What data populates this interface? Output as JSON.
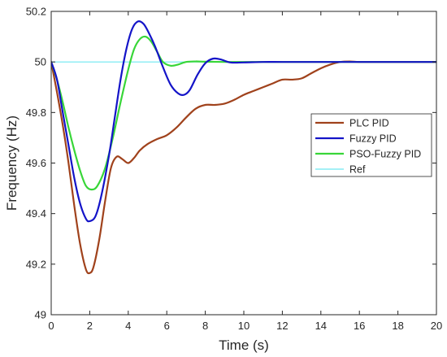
{
  "chart_data": {
    "type": "line",
    "title": "",
    "xlabel": "Time (s)",
    "ylabel": "Frequency (Hz)",
    "xlim": [
      0,
      20
    ],
    "ylim": [
      49,
      50.2
    ],
    "xticks": [
      0,
      2,
      4,
      6,
      8,
      10,
      12,
      14,
      16,
      18,
      20
    ],
    "yticks": [
      49,
      49.2,
      49.4,
      49.6,
      49.8,
      50,
      50.2
    ],
    "grid": false,
    "legend_position": "right",
    "series": [
      {
        "name": "PLC PID",
        "color": "#a0421c",
        "points": [
          [
            0,
            50
          ],
          [
            0.3,
            49.88
          ],
          [
            0.6,
            49.75
          ],
          [
            0.9,
            49.6
          ],
          [
            1.2,
            49.43
          ],
          [
            1.5,
            49.28
          ],
          [
            1.8,
            49.18
          ],
          [
            2.0,
            49.165
          ],
          [
            2.2,
            49.19
          ],
          [
            2.5,
            49.3
          ],
          [
            2.8,
            49.45
          ],
          [
            3.1,
            49.58
          ],
          [
            3.4,
            49.625
          ],
          [
            3.7,
            49.615
          ],
          [
            4.0,
            49.6
          ],
          [
            4.3,
            49.62
          ],
          [
            4.6,
            49.65
          ],
          [
            5.0,
            49.675
          ],
          [
            5.5,
            49.695
          ],
          [
            6.0,
            49.71
          ],
          [
            6.5,
            49.74
          ],
          [
            7.0,
            49.78
          ],
          [
            7.5,
            49.815
          ],
          [
            8.0,
            49.83
          ],
          [
            8.5,
            49.83
          ],
          [
            9.0,
            49.835
          ],
          [
            9.5,
            49.85
          ],
          [
            10.0,
            49.87
          ],
          [
            10.5,
            49.885
          ],
          [
            11.0,
            49.9
          ],
          [
            11.5,
            49.915
          ],
          [
            12.0,
            49.93
          ],
          [
            12.5,
            49.93
          ],
          [
            13.0,
            49.935
          ],
          [
            13.5,
            49.955
          ],
          [
            14.0,
            49.975
          ],
          [
            14.5,
            49.99
          ],
          [
            15.0,
            50
          ],
          [
            15.5,
            50.002
          ],
          [
            16.0,
            50
          ],
          [
            17.0,
            50
          ],
          [
            18.0,
            50
          ],
          [
            19.0,
            50
          ],
          [
            20.0,
            50
          ]
        ]
      },
      {
        "name": "Fuzzy PID",
        "color": "#1414c8",
        "points": [
          [
            0,
            50
          ],
          [
            0.3,
            49.93
          ],
          [
            0.6,
            49.8
          ],
          [
            0.9,
            49.67
          ],
          [
            1.2,
            49.54
          ],
          [
            1.5,
            49.44
          ],
          [
            1.8,
            49.38
          ],
          [
            2.0,
            49.37
          ],
          [
            2.3,
            49.39
          ],
          [
            2.6,
            49.47
          ],
          [
            3.0,
            49.63
          ],
          [
            3.3,
            49.78
          ],
          [
            3.6,
            49.93
          ],
          [
            3.9,
            50.05
          ],
          [
            4.2,
            50.13
          ],
          [
            4.5,
            50.16
          ],
          [
            4.8,
            50.15
          ],
          [
            5.1,
            50.11
          ],
          [
            5.4,
            50.06
          ],
          [
            5.8,
            49.98
          ],
          [
            6.2,
            49.91
          ],
          [
            6.6,
            49.875
          ],
          [
            6.9,
            49.87
          ],
          [
            7.2,
            49.89
          ],
          [
            7.6,
            49.95
          ],
          [
            8.0,
            49.995
          ],
          [
            8.4,
            50.013
          ],
          [
            8.8,
            50.01
          ],
          [
            9.3,
            49.998
          ],
          [
            10.0,
            49.998
          ],
          [
            11.0,
            50
          ],
          [
            12.0,
            50
          ],
          [
            14.0,
            50
          ],
          [
            16.0,
            50
          ],
          [
            18.0,
            50
          ],
          [
            20.0,
            50
          ]
        ]
      },
      {
        "name": "PSO-Fuzzy PID",
        "color": "#38d638",
        "points": [
          [
            0,
            50
          ],
          [
            0.3,
            49.93
          ],
          [
            0.6,
            49.84
          ],
          [
            0.9,
            49.74
          ],
          [
            1.2,
            49.65
          ],
          [
            1.5,
            49.57
          ],
          [
            1.8,
            49.51
          ],
          [
            2.1,
            49.495
          ],
          [
            2.4,
            49.51
          ],
          [
            2.8,
            49.58
          ],
          [
            3.2,
            49.7
          ],
          [
            3.6,
            49.84
          ],
          [
            4.0,
            49.97
          ],
          [
            4.3,
            50.05
          ],
          [
            4.6,
            50.09
          ],
          [
            4.9,
            50.1
          ],
          [
            5.2,
            50.08
          ],
          [
            5.5,
            50.04
          ],
          [
            5.8,
            50.0
          ],
          [
            6.2,
            49.985
          ],
          [
            6.6,
            49.99
          ],
          [
            7.0,
            50.0
          ],
          [
            7.5,
            50.002
          ],
          [
            8.0,
            50.001
          ],
          [
            9.0,
            50
          ],
          [
            10.0,
            50
          ],
          [
            12.0,
            50
          ],
          [
            14.0,
            50
          ],
          [
            16.0,
            50
          ],
          [
            18.0,
            50
          ],
          [
            20.0,
            50
          ]
        ]
      },
      {
        "name": "Ref",
        "color": "#6ee8f0",
        "points": [
          [
            0,
            50
          ],
          [
            20,
            50
          ]
        ]
      }
    ]
  }
}
